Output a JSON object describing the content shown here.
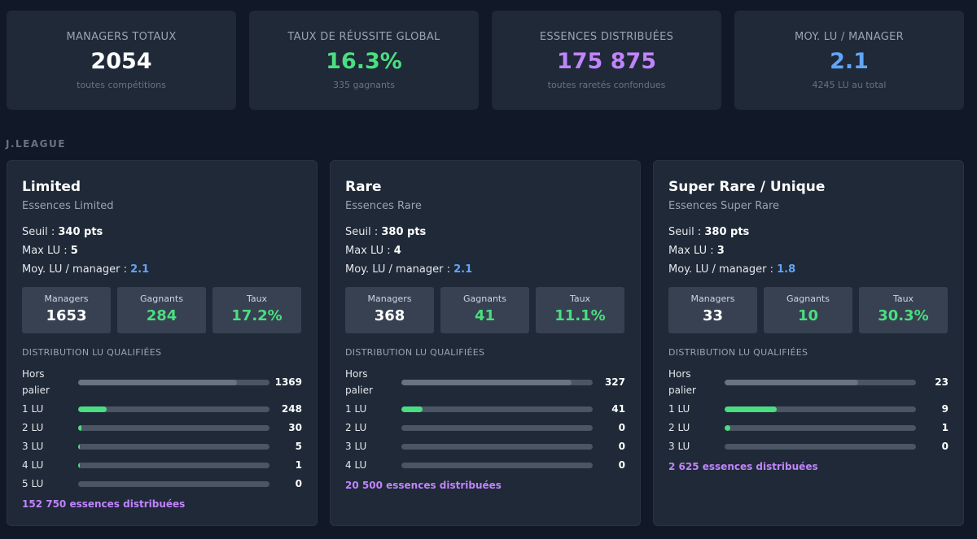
{
  "colors": {
    "white": "#ffffff",
    "green": "#4ade80",
    "purple": "#c084fc",
    "blue": "#60a5fa",
    "bar_gray": "#6b7280"
  },
  "stats": [
    {
      "label": "MANAGERS TOTAUX",
      "value": "2054",
      "sub": "toutes compétitions",
      "color": "white"
    },
    {
      "label": "TAUX DE RÉUSSITE GLOBAL",
      "value": "16.3%",
      "sub": "335 gagnants",
      "color": "green"
    },
    {
      "label": "ESSENCES DISTRIBUÉES",
      "value": "175 875",
      "sub": "toutes raretés confondues",
      "color": "purple"
    },
    {
      "label": "MOY. LU / MANAGER",
      "value": "2.1",
      "sub": "4245 LU au total",
      "color": "blue"
    }
  ],
  "section": {
    "title": "J.LEAGUE"
  },
  "labels": {
    "seuil": "Seuil : ",
    "max_lu": "Max LU : ",
    "moy_lu": "Moy. LU / manager : ",
    "managers": "Managers",
    "gagnants": "Gagnants",
    "taux": "Taux",
    "distribution": "DISTRIBUTION LU QUALIFIÉES"
  },
  "tiers": [
    {
      "title": "Limited",
      "subtitle": "Essences Limited",
      "seuil": "340 pts",
      "max_lu": "5",
      "moy_lu": "2.1",
      "managers": "1653",
      "gagnants": "284",
      "taux": "17.2%",
      "distribution": [
        {
          "label": "Hors palier",
          "count": 1369,
          "fraction": 0.828
        },
        {
          "label": "1 LU",
          "count": 248,
          "fraction": 0.15
        },
        {
          "label": "2 LU",
          "count": 30,
          "fraction": 0.018
        },
        {
          "label": "3 LU",
          "count": 5,
          "fraction": 0.003
        },
        {
          "label": "4 LU",
          "count": 1,
          "fraction": 0.001
        },
        {
          "label": "5 LU",
          "count": 0,
          "fraction": 0
        }
      ],
      "essences": "152 750 essences distribuées"
    },
    {
      "title": "Rare",
      "subtitle": "Essences Rare",
      "seuil": "380 pts",
      "max_lu": "4",
      "moy_lu": "2.1",
      "managers": "368",
      "gagnants": "41",
      "taux": "11.1%",
      "distribution": [
        {
          "label": "Hors palier",
          "count": 327,
          "fraction": 0.889
        },
        {
          "label": "1 LU",
          "count": 41,
          "fraction": 0.111
        },
        {
          "label": "2 LU",
          "count": 0,
          "fraction": 0
        },
        {
          "label": "3 LU",
          "count": 0,
          "fraction": 0
        },
        {
          "label": "4 LU",
          "count": 0,
          "fraction": 0
        }
      ],
      "essences": "20 500 essences distribuées"
    },
    {
      "title": "Super Rare / Unique",
      "subtitle": "Essences Super Rare",
      "seuil": "380 pts",
      "max_lu": "3",
      "moy_lu": "1.8",
      "managers": "33",
      "gagnants": "10",
      "taux": "30.3%",
      "distribution": [
        {
          "label": "Hors palier",
          "count": 23,
          "fraction": 0.697
        },
        {
          "label": "1 LU",
          "count": 9,
          "fraction": 0.273
        },
        {
          "label": "2 LU",
          "count": 1,
          "fraction": 0.03
        },
        {
          "label": "3 LU",
          "count": 0,
          "fraction": 0
        }
      ],
      "essences": "2 625 essences distribuées"
    }
  ]
}
